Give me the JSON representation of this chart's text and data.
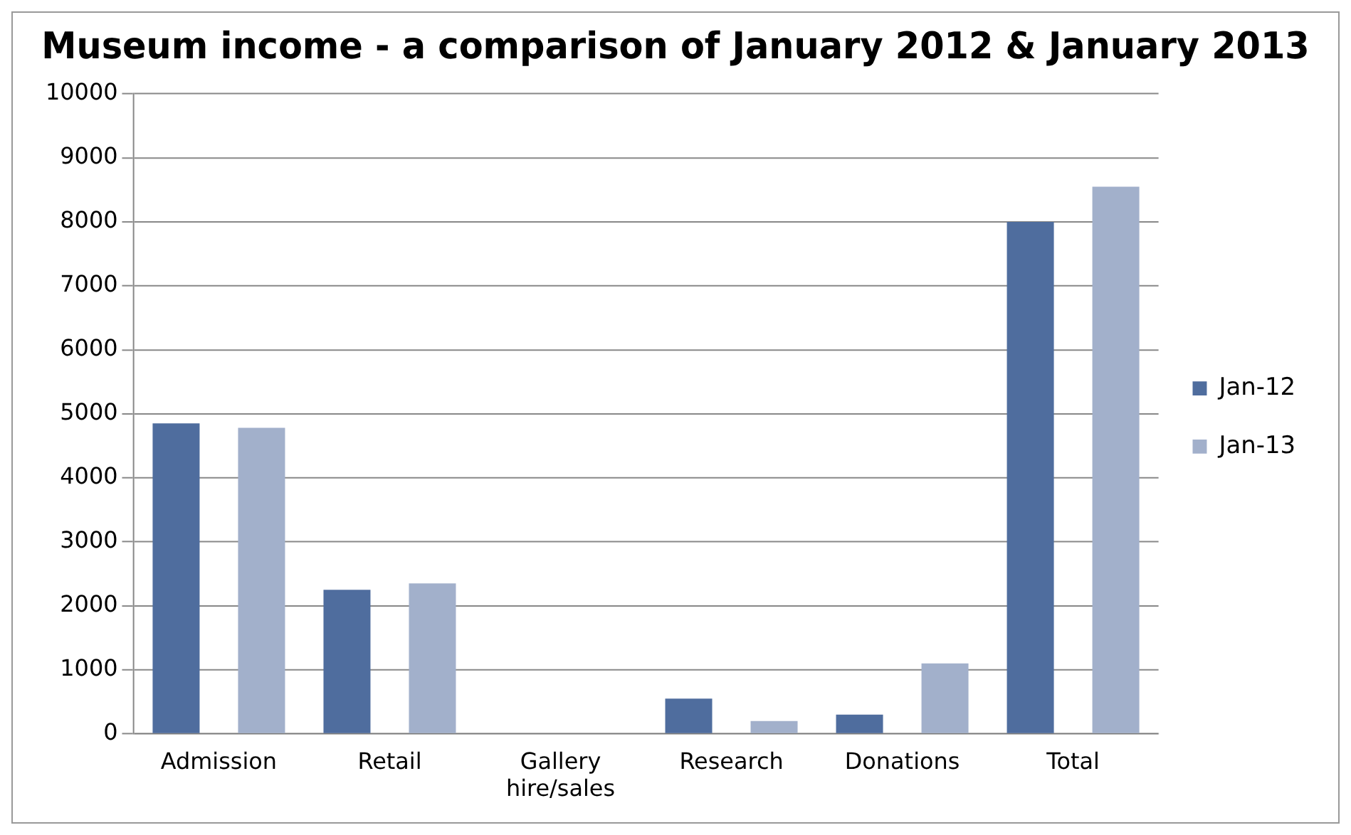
{
  "chart_data": {
    "type": "bar",
    "title": "Museum income - a comparison of January 2012 & January 2013",
    "categories": [
      "Admission",
      "Retail",
      "Gallery hire/sales",
      "Research",
      "Donations",
      "Total"
    ],
    "series": [
      {
        "name": "Jan-12",
        "color": "#4f6d9e",
        "values": [
          4850,
          2250,
          0,
          550,
          300,
          8000
        ]
      },
      {
        "name": "Jan-13",
        "color": "#a2b0cb",
        "values": [
          4780,
          2350,
          0,
          200,
          1100,
          8550
        ]
      }
    ],
    "ylim": [
      0,
      10000
    ],
    "yticks": [
      0,
      1000,
      2000,
      3000,
      4000,
      5000,
      6000,
      7000,
      8000,
      9000,
      10000
    ],
    "grid": "y",
    "legend": "right"
  }
}
